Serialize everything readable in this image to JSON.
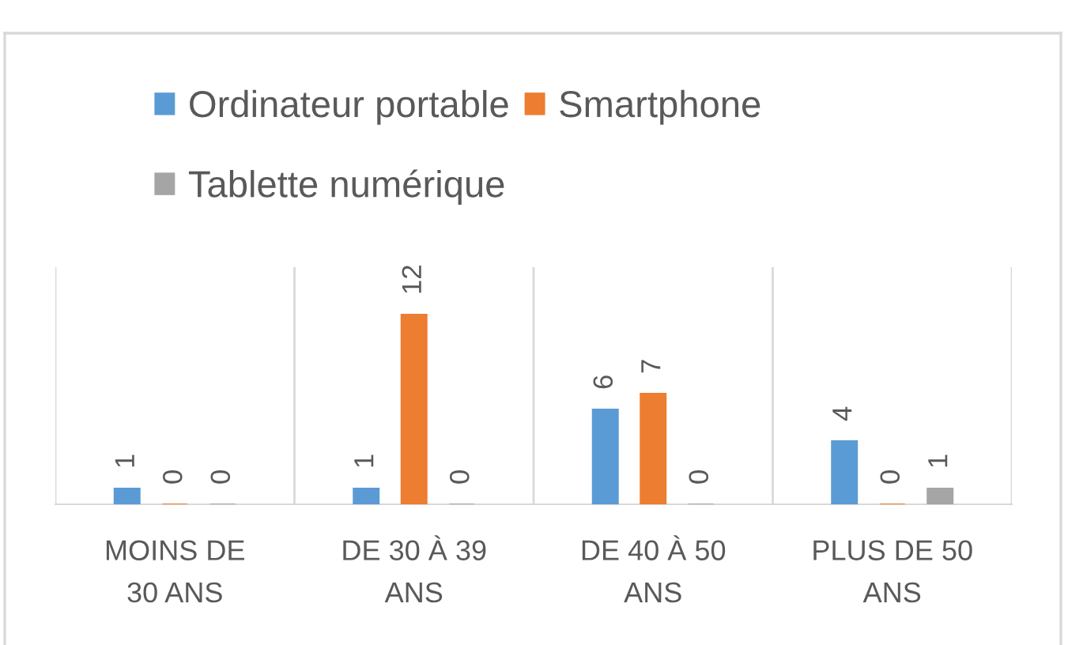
{
  "chart_data": {
    "type": "bar",
    "categories": [
      "MOINS DE\n30 ANS",
      "DE 30 À 39\nANS",
      "DE 40 À 50\nANS",
      "PLUS DE 50\nANS"
    ],
    "series": [
      {
        "name": "Ordinateur portable",
        "color": "#5b9bd5",
        "values": [
          1,
          1,
          6,
          4
        ]
      },
      {
        "name": "Smartphone",
        "color": "#ed7d31",
        "values": [
          0,
          12,
          7,
          0
        ]
      },
      {
        "name": "Tablette numérique",
        "color": "#a5a5a5",
        "values": [
          0,
          0,
          0,
          1
        ]
      }
    ],
    "ylim": [
      0,
      15
    ],
    "data_labels": true,
    "grid": "x",
    "legend": "top",
    "tick_labels": "x"
  }
}
